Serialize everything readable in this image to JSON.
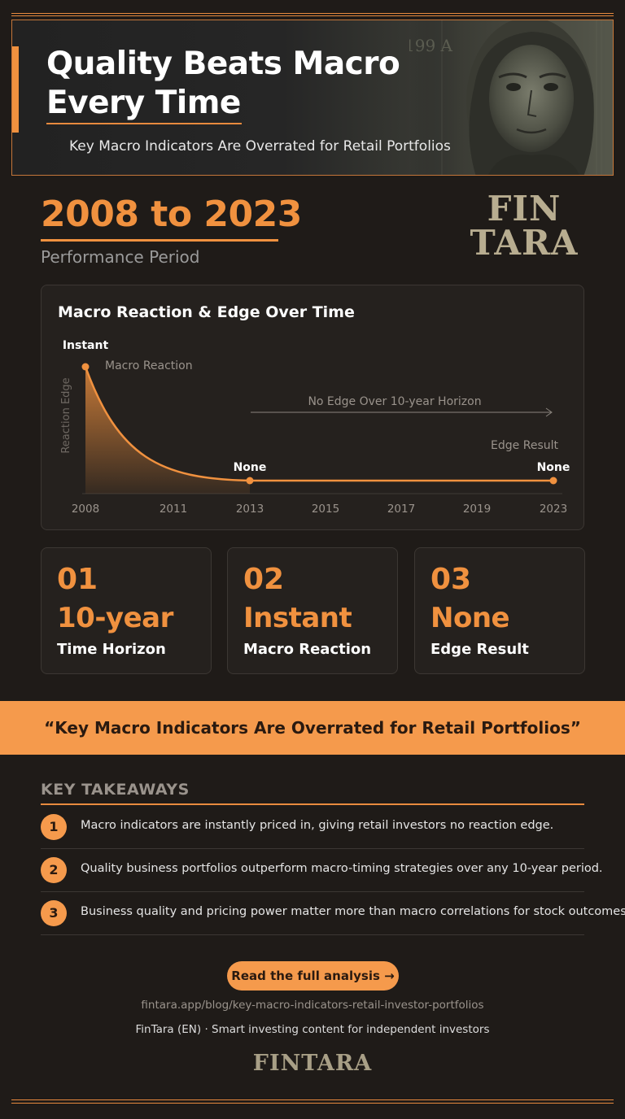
{
  "hero": {
    "title_line1": "Quality Beats Macro",
    "title_line2": "Every Time",
    "subtitle": "Key Macro Indicators Are Overrated for Retail Portfolios",
    "banknote_serial": "199 A"
  },
  "period": {
    "range": "2008 to 2023",
    "label": "Performance Period"
  },
  "brand": {
    "logo_line1": "FIN",
    "logo_line2": "TARA",
    "footer_logo": "FINTARA"
  },
  "chart_data": {
    "type": "area",
    "title": "Macro Reaction & Edge Over Time",
    "ylabel": "Reaction Edge",
    "xlabel": "",
    "x_ticks": [
      "2008",
      "2011",
      "2013",
      "2015",
      "2017",
      "2019",
      "2023"
    ],
    "series": [
      {
        "name": "Macro Reaction",
        "x": [
          2008,
          2013,
          2023
        ],
        "y": [
          1,
          0,
          0
        ]
      }
    ],
    "ylim": [
      0,
      1
    ],
    "point_labels": [
      {
        "x": 2008,
        "text": "Instant"
      },
      {
        "x": 2013,
        "text": "None"
      },
      {
        "x": 2023,
        "text": "None"
      }
    ],
    "annotations": {
      "horizon": "No Edge Over 10-year Horizon",
      "result": "Edge Result"
    },
    "colors": {
      "line": "#f0913f",
      "fill": "#f0913f",
      "axis": "#3f3a35",
      "text": "#9a938c"
    }
  },
  "stats": [
    {
      "num": "01",
      "value": "10-year",
      "label": "Time Horizon"
    },
    {
      "num": "02",
      "value": "Instant",
      "label": "Macro Reaction"
    },
    {
      "num": "03",
      "value": "None",
      "label": "Edge Result"
    }
  ],
  "quote": "“Key Macro Indicators Are Overrated for Retail Portfolios”",
  "takeaways": {
    "heading": "KEY TAKEAWAYS",
    "items": [
      {
        "num": "1",
        "text": "Macro indicators are instantly priced in, giving retail investors no reaction edge."
      },
      {
        "num": "2",
        "text": "Quality business portfolios outperform macro-timing strategies over any 10-year period."
      },
      {
        "num": "3",
        "text": "Business quality and pricing power matter more than macro correlations for stock outcomes."
      }
    ]
  },
  "footer": {
    "cta": "Read the full analysis →",
    "url": "fintara.app/blog/key-macro-indicators-retail-investor-portfolios",
    "tagline": "FinTara (EN) · Smart investing content for independent investors"
  },
  "colors": {
    "accent": "#f0913f",
    "background": "#1f1b18",
    "card": "#25211e"
  }
}
